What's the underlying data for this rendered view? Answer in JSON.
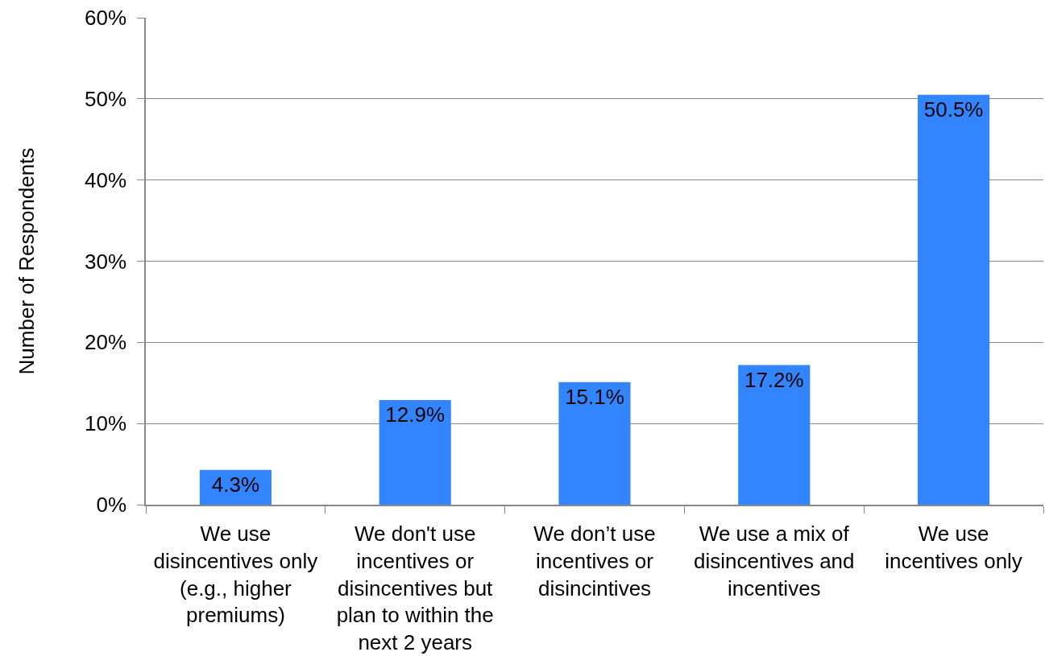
{
  "chart_data": {
    "type": "bar",
    "ylabel": "Number of Respondents",
    "categories": [
      "We use\ndisincentives only\n(e.g., higher\npremiums)",
      "We don't use\nincentives or\ndisincentives but\nplan to within the\nnext 2 years",
      "We don’t use\nincentives or\ndisincintives",
      "We use a mix of\ndisincentives and\nincentives",
      "We use\nincentives only"
    ],
    "values": [
      4.3,
      12.9,
      15.1,
      17.2,
      50.5
    ],
    "value_labels": [
      "4.3%",
      "12.9%",
      "15.1%",
      "17.2%",
      "50.5%"
    ],
    "color": "#3385ff",
    "ylim": [
      0,
      60
    ],
    "yticks": [
      {
        "value": 0,
        "label": "0%"
      },
      {
        "value": 10,
        "label": "10%"
      },
      {
        "value": 20,
        "label": "20%"
      },
      {
        "value": 30,
        "label": "30%"
      },
      {
        "value": 40,
        "label": "40%"
      },
      {
        "value": 50,
        "label": "50%"
      },
      {
        "value": 60,
        "label": "60%"
      }
    ],
    "grid": "y"
  }
}
